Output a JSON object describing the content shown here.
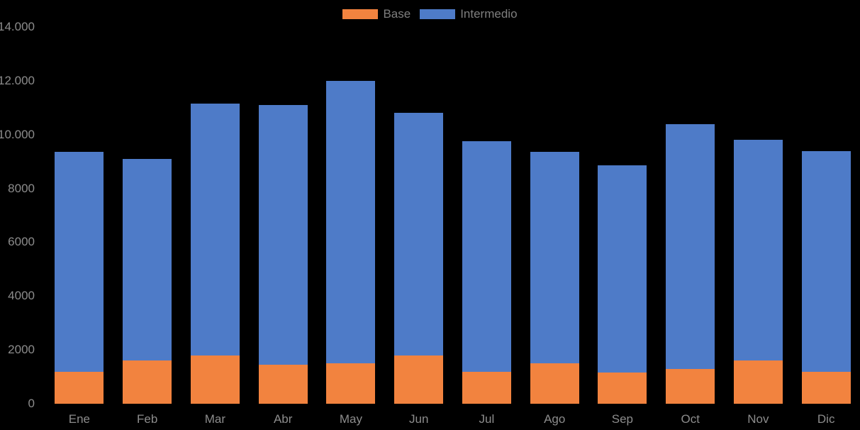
{
  "chart_data": {
    "type": "bar",
    "stacked": true,
    "title": "",
    "xlabel": "",
    "ylabel": "",
    "categories": [
      "Ene",
      "Feb",
      "Mar",
      "Abr",
      "May",
      "Jun",
      "Jul",
      "Ago",
      "Sep",
      "Oct",
      "Nov",
      "Dic"
    ],
    "series": [
      {
        "name": "Base",
        "color": "#F2833F",
        "values": [
          1200,
          1600,
          1800,
          1450,
          1500,
          1800,
          1200,
          1500,
          1150,
          1300,
          1600,
          1200
        ]
      },
      {
        "name": "Intermedio",
        "color": "#4E7BC8",
        "values": [
          8150,
          7500,
          9350,
          9650,
          10500,
          9000,
          8550,
          7850,
          7700,
          9100,
          8200,
          8200
        ]
      }
    ],
    "stack_totals": [
      9350,
      9100,
      11150,
      11100,
      12000,
      10800,
      9750,
      9350,
      8850,
      10400,
      9800,
      9400
    ],
    "y_axis": {
      "min": 0,
      "max": 14000,
      "step": 2000,
      "tick_labels": [
        "0",
        "2000",
        "4000",
        "6000",
        "8000",
        "10.000",
        "12.000",
        "14.000"
      ]
    },
    "legend": {
      "position": "top-center",
      "entries": [
        {
          "label": "Base",
          "color": "#F2833F"
        },
        {
          "label": "Intermedio",
          "color": "#4E7BC8"
        }
      ]
    },
    "background_color": "#000000",
    "axis_text_color": "#8C8C8C",
    "legend_text_color": "#7F7F7F",
    "gridlines": false
  }
}
